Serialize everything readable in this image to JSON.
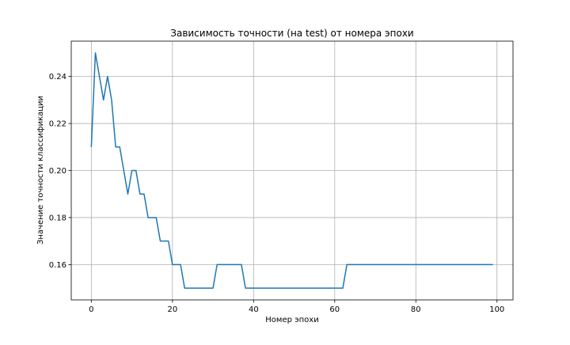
{
  "chart_data": {
    "type": "line",
    "title": "Зависимость точности (на test) от номера эпохи",
    "xlabel": "Номер эпохи",
    "ylabel": "Значение точности классификации",
    "xlim": [
      -4.95,
      103.95
    ],
    "ylim": [
      0.145,
      0.255
    ],
    "xticks": [
      0,
      20,
      40,
      60,
      80,
      100
    ],
    "yticks": [
      0.16,
      0.18,
      0.2,
      0.22,
      0.24
    ],
    "xtick_labels": [
      "0",
      "20",
      "40",
      "60",
      "80",
      "100"
    ],
    "ytick_labels": [
      "0.16",
      "0.18",
      "0.20",
      "0.22",
      "0.24"
    ],
    "grid": true,
    "line_color": "#1f77b4",
    "series": [
      {
        "x": [
          0,
          1,
          2,
          3,
          4,
          5,
          6,
          7,
          8,
          9,
          10,
          11,
          12,
          13,
          14,
          15,
          16,
          17,
          18,
          19,
          20,
          21,
          22,
          23,
          24,
          25,
          26,
          27,
          28,
          29,
          30,
          31,
          32,
          33,
          34,
          35,
          36,
          37,
          38,
          39,
          40,
          41,
          42,
          43,
          44,
          45,
          46,
          47,
          48,
          49,
          50,
          51,
          52,
          53,
          54,
          55,
          56,
          57,
          58,
          59,
          60,
          61,
          62,
          63,
          64,
          65,
          66,
          67,
          68,
          69,
          70,
          71,
          72,
          73,
          74,
          75,
          76,
          77,
          78,
          79,
          80,
          81,
          82,
          83,
          84,
          85,
          86,
          87,
          88,
          89,
          90,
          91,
          92,
          93,
          94,
          95,
          96,
          97,
          98,
          99
        ],
        "values": [
          0.21,
          0.25,
          0.24,
          0.23,
          0.24,
          0.23,
          0.21,
          0.21,
          0.2,
          0.19,
          0.2,
          0.2,
          0.19,
          0.19,
          0.18,
          0.18,
          0.18,
          0.17,
          0.17,
          0.17,
          0.16,
          0.16,
          0.16,
          0.15,
          0.15,
          0.15,
          0.15,
          0.15,
          0.15,
          0.15,
          0.15,
          0.16,
          0.16,
          0.16,
          0.16,
          0.16,
          0.16,
          0.16,
          0.15,
          0.15,
          0.15,
          0.15,
          0.15,
          0.15,
          0.15,
          0.15,
          0.15,
          0.15,
          0.15,
          0.15,
          0.15,
          0.15,
          0.15,
          0.15,
          0.15,
          0.15,
          0.15,
          0.15,
          0.15,
          0.15,
          0.15,
          0.15,
          0.15,
          0.16,
          0.16,
          0.16,
          0.16,
          0.16,
          0.16,
          0.16,
          0.16,
          0.16,
          0.16,
          0.16,
          0.16,
          0.16,
          0.16,
          0.16,
          0.16,
          0.16,
          0.16,
          0.16,
          0.16,
          0.16,
          0.16,
          0.16,
          0.16,
          0.16,
          0.16,
          0.16,
          0.16,
          0.16,
          0.16,
          0.16,
          0.16,
          0.16,
          0.16,
          0.16,
          0.16,
          0.16
        ]
      }
    ]
  }
}
